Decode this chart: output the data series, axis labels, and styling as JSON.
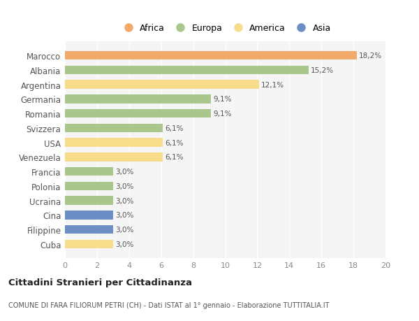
{
  "categories": [
    "Marocco",
    "Albania",
    "Argentina",
    "Germania",
    "Romania",
    "Svizzera",
    "USA",
    "Venezuela",
    "Francia",
    "Polonia",
    "Ucraina",
    "Cina",
    "Filippine",
    "Cuba"
  ],
  "values": [
    18.2,
    15.2,
    12.1,
    9.1,
    9.1,
    6.1,
    6.1,
    6.1,
    3.0,
    3.0,
    3.0,
    3.0,
    3.0,
    3.0
  ],
  "labels": [
    "18,2%",
    "15,2%",
    "12,1%",
    "9,1%",
    "9,1%",
    "6,1%",
    "6,1%",
    "6,1%",
    "3,0%",
    "3,0%",
    "3,0%",
    "3,0%",
    "3,0%",
    "3,0%"
  ],
  "colors": [
    "#F2A96A",
    "#A9C68D",
    "#F7DC8C",
    "#A9C68D",
    "#A9C68D",
    "#A9C68D",
    "#F7DC8C",
    "#F7DC8C",
    "#A9C68D",
    "#A9C68D",
    "#A9C68D",
    "#6B8EC4",
    "#6B8EC4",
    "#F7DC8C"
  ],
  "legend_labels": [
    "Africa",
    "Europa",
    "America",
    "Asia"
  ],
  "legend_colors": [
    "#F2A96A",
    "#A9C68D",
    "#F7DC8C",
    "#6B8EC4"
  ],
  "title": "Cittadini Stranieri per Cittadinanza",
  "subtitle": "COMUNE DI FARA FILIORUM PETRI (CH) - Dati ISTAT al 1° gennaio - Elaborazione TUTTITALIA.IT",
  "xlim": [
    0,
    20
  ],
  "xticks": [
    0,
    2,
    4,
    6,
    8,
    10,
    12,
    14,
    16,
    18,
    20
  ],
  "plot_bg": "#f5f5f5",
  "fig_bg": "#ffffff",
  "bar_height": 0.6
}
